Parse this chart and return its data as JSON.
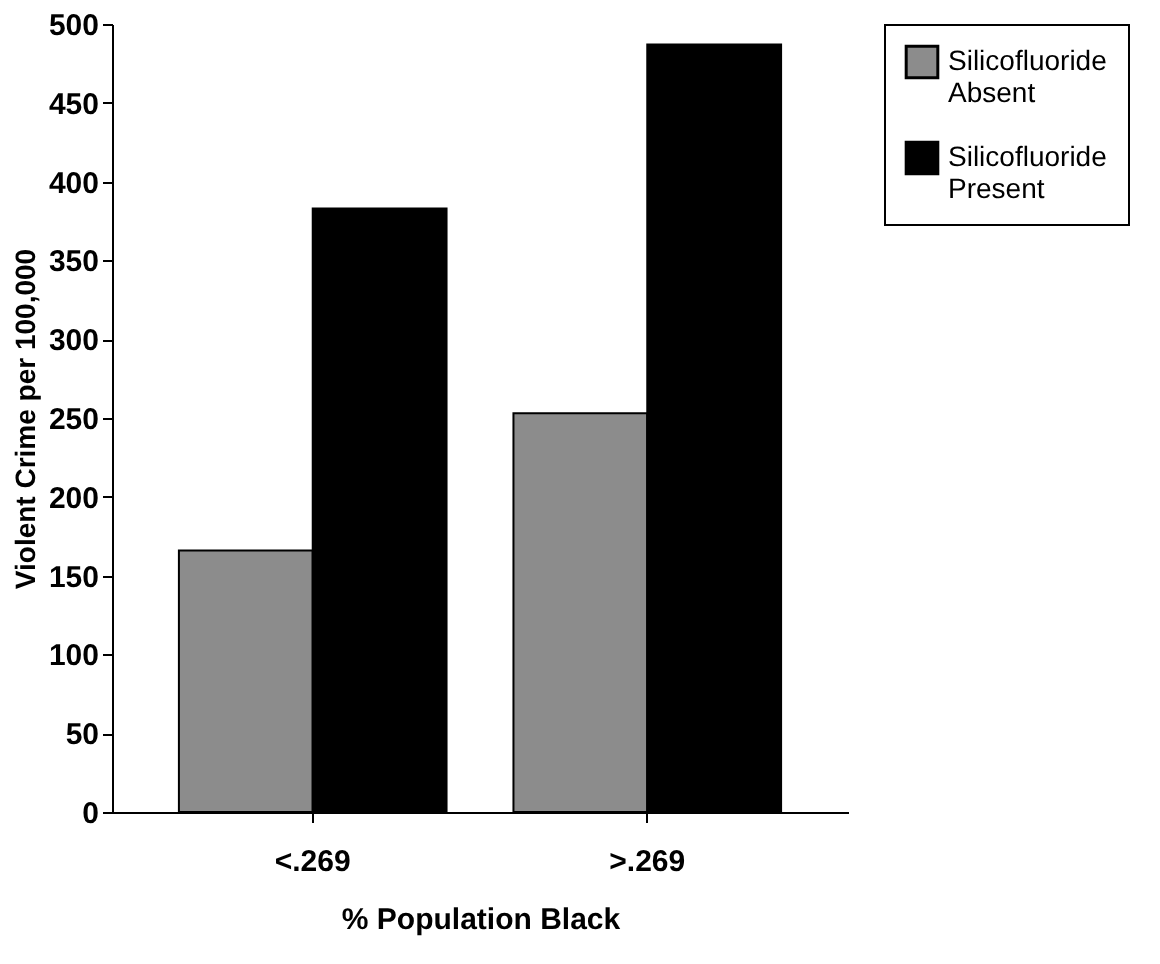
{
  "chart_data": {
    "type": "bar",
    "xlabel": "% Population Black",
    "ylabel": "Violent Crime per 100,000",
    "categories": [
      "<.269",
      ">.269"
    ],
    "series": [
      {
        "name": "Silicofluoride Absent",
        "color": "#8c8c8c",
        "values": [
          166,
          253
        ]
      },
      {
        "name": "Silicofluoride Present",
        "color": "#000000",
        "values": [
          383,
          487
        ]
      }
    ],
    "ylim": [
      0,
      500
    ],
    "yticks": [
      0,
      50,
      100,
      150,
      200,
      250,
      300,
      350,
      400,
      450,
      500
    ],
    "grid": false,
    "legend": "right"
  }
}
